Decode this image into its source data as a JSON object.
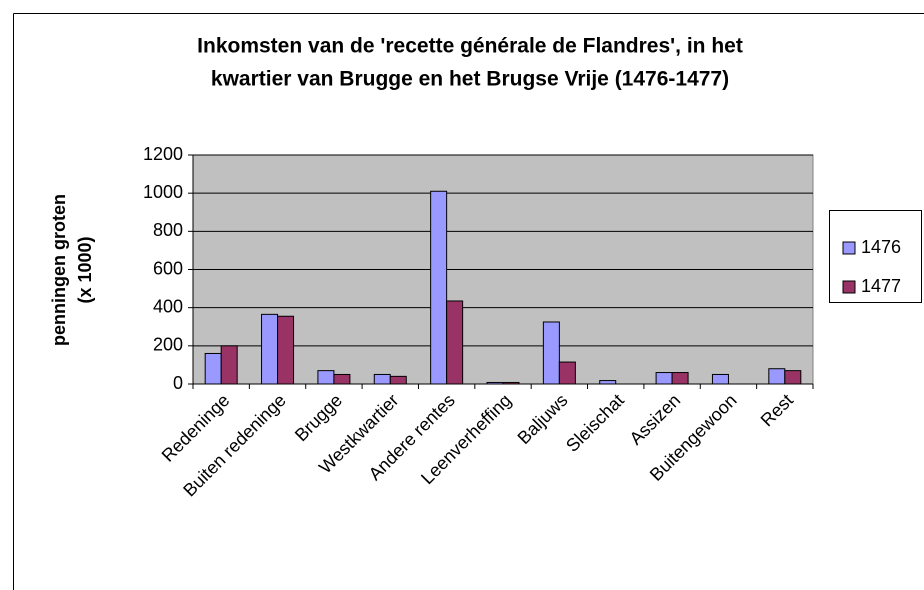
{
  "chart_data": {
    "type": "bar",
    "title": [
      "Inkomsten van de 'recette générale de Flandres', in het",
      "kwartier van Brugge en het Brugse Vrije (1476-1477)"
    ],
    "y_label": [
      "penningen groten",
      "(x 1000)"
    ],
    "categories": [
      "Redeninge",
      "Buiten redeninge",
      "Brugge",
      "Westkwartier",
      "Andere rentes",
      "Leenverheffing",
      "Baljuws",
      "Sleischat",
      "Assizen",
      "Buitengewoon",
      "Rest"
    ],
    "series": [
      {
        "name": "1476",
        "color": "#9999ff",
        "values": [
          160,
          365,
          70,
          50,
          1010,
          8,
          325,
          18,
          60,
          50,
          80
        ]
      },
      {
        "name": "1477",
        "color": "#993366",
        "values": [
          200,
          355,
          50,
          40,
          435,
          8,
          115,
          0,
          60,
          0,
          70
        ]
      }
    ],
    "ylim": [
      0,
      1200
    ],
    "yticks": [
      0,
      200,
      400,
      600,
      800,
      1000,
      1200
    ],
    "grid": true,
    "legend": "right"
  }
}
